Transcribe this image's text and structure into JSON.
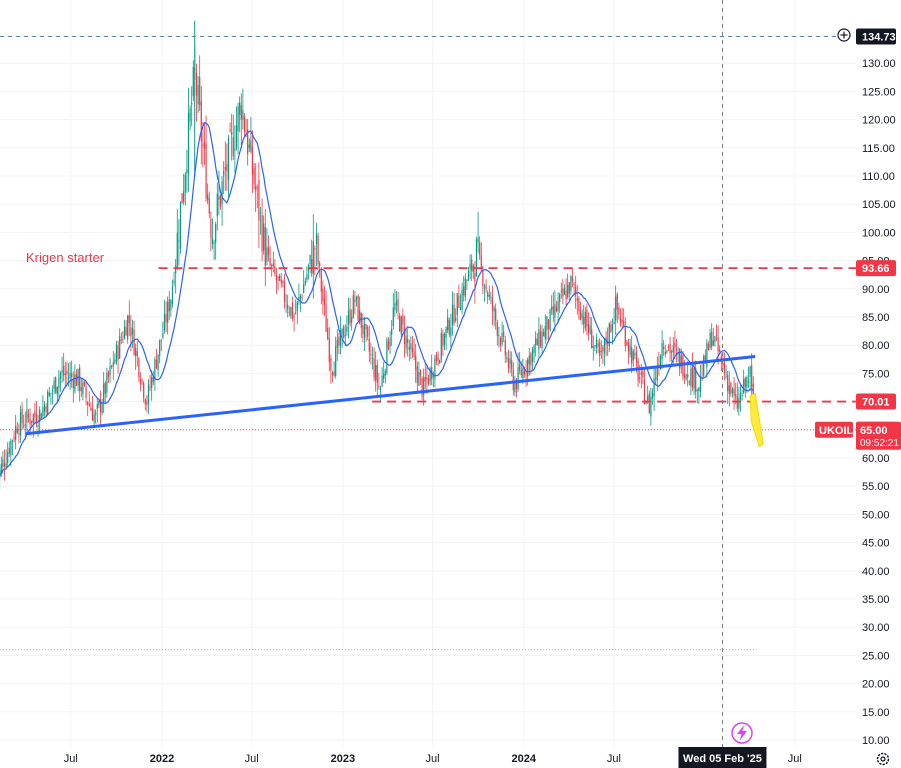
{
  "chart_data": {
    "type": "candlestick",
    "symbol": "UKOIL",
    "ylim": [
      9,
      138
    ],
    "y_ticks": [
      10,
      15,
      20,
      25,
      30,
      35,
      40,
      45,
      50,
      55,
      60,
      65,
      70,
      75,
      80,
      85,
      90,
      95,
      100,
      105,
      110,
      115,
      120,
      125,
      130
    ],
    "x_ticks": [
      {
        "label": "Jul",
        "date": "2021-07-01"
      },
      {
        "label": "2022",
        "date": "2022-01-01",
        "bold": true
      },
      {
        "label": "Jul",
        "date": "2022-07-01"
      },
      {
        "label": "2023",
        "date": "2023-01-01",
        "bold": true
      },
      {
        "label": "Jul",
        "date": "2023-07-01"
      },
      {
        "label": "2024",
        "date": "2024-01-01",
        "bold": true
      },
      {
        "label": "Jul",
        "date": "2024-07-01"
      },
      {
        "label": "Jul",
        "date": "2025-07-01"
      }
    ],
    "price_path": [
      {
        "date": "2021-02-01",
        "price": 56
      },
      {
        "date": "2021-03-15",
        "price": 66
      },
      {
        "date": "2021-05-01",
        "price": 68
      },
      {
        "date": "2021-06-10",
        "price": 75
      },
      {
        "date": "2021-07-15",
        "price": 74
      },
      {
        "date": "2021-08-20",
        "price": 67
      },
      {
        "date": "2021-10-25",
        "price": 85
      },
      {
        "date": "2021-12-01",
        "price": 70
      },
      {
        "date": "2022-01-20",
        "price": 89
      },
      {
        "date": "2022-03-08",
        "price": 128
      },
      {
        "date": "2022-04-12",
        "price": 100
      },
      {
        "date": "2022-06-10",
        "price": 123
      },
      {
        "date": "2022-08-01",
        "price": 95
      },
      {
        "date": "2022-09-25",
        "price": 85
      },
      {
        "date": "2022-11-07",
        "price": 98
      },
      {
        "date": "2022-12-09",
        "price": 76
      },
      {
        "date": "2023-01-25",
        "price": 88
      },
      {
        "date": "2023-03-17",
        "price": 72
      },
      {
        "date": "2023-04-15",
        "price": 87
      },
      {
        "date": "2023-06-12",
        "price": 72
      },
      {
        "date": "2023-09-28",
        "price": 96
      },
      {
        "date": "2023-12-13",
        "price": 73
      },
      {
        "date": "2024-04-05",
        "price": 91
      },
      {
        "date": "2024-06-04",
        "price": 77
      },
      {
        "date": "2024-07-05",
        "price": 87
      },
      {
        "date": "2024-09-10",
        "price": 69
      },
      {
        "date": "2024-10-07",
        "price": 81
      },
      {
        "date": "2024-12-20",
        "price": 73
      },
      {
        "date": "2025-01-15",
        "price": 82
      },
      {
        "date": "2025-03-05",
        "price": 69
      },
      {
        "date": "2025-04-02",
        "price": 75
      },
      {
        "date": "2025-04-10",
        "price": 65
      }
    ],
    "trendline": {
      "from": {
        "date": "2021-04-01",
        "price": 64.3
      },
      "to": {
        "date": "2025-04-12",
        "price": 78
      }
    },
    "h_lines": [
      {
        "price": 93.66,
        "from": "2021-12-25",
        "style": "dashed-red",
        "label": "93.66"
      },
      {
        "price": 70.01,
        "from": "2023-03-01",
        "style": "dashed-red",
        "label": "70.01"
      },
      {
        "price": 65.0,
        "style": "dotted-red",
        "label": "65.00"
      },
      {
        "price": 134.73,
        "style": "crosshair",
        "label": "134.73"
      },
      {
        "price": 26,
        "style": "dotted-faint"
      }
    ],
    "crosshair_date": "2025-02-05",
    "crosshair_label": "Wed 05 Feb '25",
    "last_price_tag": {
      "symbol": "UKOIL",
      "price": "65.00",
      "countdown": "09:52:21"
    },
    "annotation": {
      "text": "Krigen starter",
      "color": "#f23645"
    },
    "colors": {
      "up": "#089981",
      "down": "#f23645",
      "ma": "#2962ff",
      "trend": "#2962ff",
      "level": "#f23645",
      "highlight": "#ffeb3b"
    }
  }
}
